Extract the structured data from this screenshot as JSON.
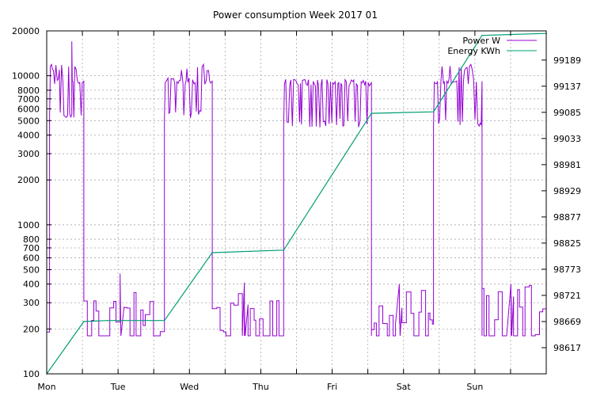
{
  "chart_data": {
    "type": "line",
    "title": "Power consumption Week 2017 01",
    "x": {
      "range": [
        0,
        7
      ],
      "tick_labels": [
        "Mon",
        "Tue",
        "Wed",
        "Thu",
        "Fri",
        "Sat",
        "Sun"
      ],
      "tick_positions": [
        0,
        1,
        2,
        3,
        4,
        5,
        6
      ],
      "grid": true
    },
    "y_left": {
      "scale": "log",
      "range": [
        100,
        20000
      ],
      "ticks": [
        100,
        200,
        300,
        400,
        500,
        600,
        700,
        800,
        1000,
        2000,
        3000,
        4000,
        5000,
        6000,
        7000,
        8000,
        10000,
        20000
      ],
      "grid": true
    },
    "y_right": {
      "scale": "linear",
      "range": [
        98565,
        99247
      ],
      "ticks": [
        98617,
        98669,
        98721,
        98773,
        98825,
        98877,
        98929,
        98981,
        99033,
        99085,
        99137,
        99189
      ]
    },
    "legend": {
      "placement": "top-right",
      "entries": [
        "Power W",
        "Energy KWh"
      ]
    },
    "series": [
      {
        "name": "Power W",
        "axis": "left",
        "color": "#9400d3",
        "pattern": "segments",
        "segments": [
          {
            "from": 0.0,
            "to": 0.04,
            "low": 180,
            "high": 240
          },
          {
            "from": 0.04,
            "to": 0.52,
            "low": 5100,
            "high": 12000,
            "mid": 9200,
            "spike": 17000
          },
          {
            "from": 0.52,
            "to": 1.65,
            "low": 180,
            "high": 360,
            "spike": 470
          },
          {
            "from": 1.65,
            "to": 2.32,
            "low": 5100,
            "high": 12000,
            "mid": 9200
          },
          {
            "from": 2.32,
            "to": 3.32,
            "low": 180,
            "high": 380,
            "spike": 410
          },
          {
            "from": 3.32,
            "to": 4.55,
            "low": 4500,
            "high": 9500,
            "mid": 9000
          },
          {
            "from": 4.55,
            "to": 5.42,
            "low": 180,
            "high": 380,
            "spike": 400
          },
          {
            "from": 5.42,
            "to": 6.1,
            "low": 4500,
            "high": 12000,
            "mid": 9200
          },
          {
            "from": 6.1,
            "to": 7.0,
            "low": 180,
            "high": 400,
            "spike": 400
          }
        ]
      },
      {
        "name": "Energy KWh",
        "axis": "right",
        "color": "#009e73",
        "x": [
          0.0,
          0.52,
          0.85,
          1.65,
          2.32,
          3.32,
          4.55,
          5.42,
          6.1,
          7.0
        ],
        "y": [
          98565,
          98669,
          98671,
          98671,
          98806,
          98811,
          99083,
          99086,
          99238,
          99242
        ]
      }
    ]
  }
}
